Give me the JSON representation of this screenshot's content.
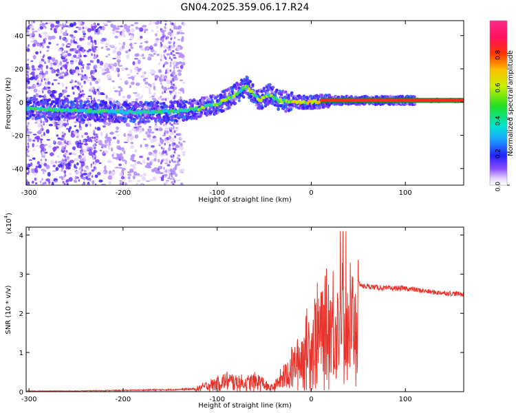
{
  "title": "GN04.2025.359.06.17.R24",
  "chart_data": [
    {
      "type": "heatmap",
      "title": "GN04.2025.359.06.17.R24",
      "xlabel": "Height of straight line (km)",
      "ylabel": "Frequency (Hz)",
      "xlim": [
        -303,
        162
      ],
      "ylim": [
        -50,
        49
      ],
      "xticks": [
        -300,
        -200,
        -100,
        0,
        100
      ],
      "yticks": [
        -40,
        -20,
        0,
        20,
        40
      ],
      "colorbar": {
        "label": "Normalized spectral amplitude",
        "range": [
          0,
          1
        ],
        "ticks": [
          0.0,
          0.2,
          0.4,
          0.6,
          0.8
        ]
      },
      "ridge": {
        "x": [
          -300,
          -250,
          -200,
          -150,
          -120,
          -100,
          -85,
          -75,
          -68,
          -62,
          -55,
          -45,
          -35,
          -20,
          -10,
          0,
          20,
          60,
          100,
          162
        ],
        "y": [
          -4,
          -5,
          -6,
          -6,
          -4,
          -1,
          3,
          7,
          10,
          5,
          1,
          5,
          1,
          0,
          0,
          0,
          1,
          1,
          1,
          1
        ]
      }
    },
    {
      "type": "line",
      "xlabel": "Height of straight line (km)",
      "ylabel": "SNR (10 * v/v)",
      "y_multiplier": "(x10",
      "y_multiplier_exp": "4",
      "y_multiplier_close": ")",
      "xlim": [
        -303,
        162
      ],
      "ylim": [
        0,
        4.2
      ],
      "xticks": [
        -300,
        -200,
        -100,
        0,
        100
      ],
      "yticks": [
        0,
        1,
        2,
        3,
        4
      ],
      "series": [
        {
          "name": "SNR",
          "color": "#e8322a",
          "envelope_x": [
            -303,
            -250,
            -200,
            -150,
            -125,
            -110,
            -90,
            -70,
            -55,
            -45,
            -40,
            -35,
            -25,
            -15,
            -5,
            5,
            15,
            25,
            35,
            45,
            55,
            60,
            80,
            100,
            130,
            162
          ],
          "envelope_y": [
            0.02,
            0.02,
            0.04,
            0.06,
            0.08,
            0.25,
            0.45,
            0.35,
            0.45,
            0.15,
            0.2,
            0.4,
            0.8,
            1.2,
            1.8,
            2.3,
            2.6,
            2.9,
            2.8,
            2.9,
            2.7,
            2.7,
            2.65,
            2.65,
            2.55,
            2.5
          ]
        }
      ]
    }
  ]
}
